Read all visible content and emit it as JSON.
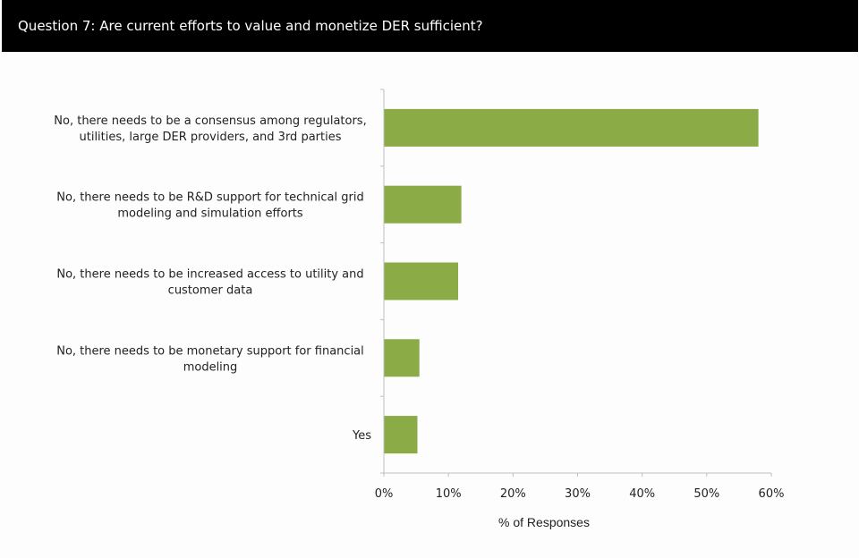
{
  "header": {
    "title": "Question 7: Are current efforts to value and monetize DER sufficient?"
  },
  "chart_data": {
    "type": "bar",
    "orientation": "horizontal",
    "categories": [
      [
        "No, there needs to be a consensus among regulators,",
        "utilities, large DER providers, and 3rd parties"
      ],
      [
        "No, there needs to be R&D support for technical grid",
        "modeling and simulation efforts"
      ],
      [
        "No, there needs to be increased access to utility and",
        "customer data"
      ],
      [
        "No, there needs to be monetary support for financial",
        "modeling"
      ],
      [
        "Yes"
      ]
    ],
    "values": [
      58,
      12,
      11.5,
      5.5,
      5.2
    ],
    "xlim": [
      0,
      60
    ],
    "ticks": [
      0,
      10,
      20,
      30,
      40,
      50,
      60
    ],
    "tick_labels": [
      "0%",
      "10%",
      "20%",
      "30%",
      "40%",
      "50%",
      "60%"
    ],
    "xlabel": "% of Responses",
    "ylabel": "",
    "grid": false,
    "bar_color": "#8bab47"
  }
}
